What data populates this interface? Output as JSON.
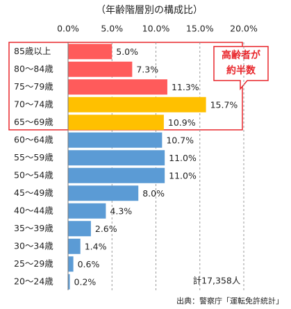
{
  "chart_data": {
    "type": "barh",
    "title": "（年齢階層別の構成比）",
    "categories": [
      "85歳以上",
      "80～84歳",
      "75～79歳",
      "70～74歳",
      "65～69歳",
      "60～64歳",
      "55～59歳",
      "50～54歳",
      "45～49歳",
      "40～44歳",
      "35～39歳",
      "30～34歳",
      "25～29歳",
      "20～24歳"
    ],
    "values": [
      5.0,
      7.3,
      11.3,
      15.7,
      10.9,
      10.7,
      11.0,
      11.0,
      8.0,
      4.3,
      2.6,
      1.4,
      0.6,
      0.2
    ],
    "value_labels": [
      "5.0%",
      "7.3%",
      "11.3%",
      "15.7%",
      "10.9%",
      "10.7%",
      "11.0%",
      "11.0%",
      "8.0%",
      "4.3%",
      "2.6%",
      "1.4%",
      "0.6%",
      "0.2%"
    ],
    "colors": [
      "#ff5b5b",
      "#ff5b5b",
      "#ff5b5b",
      "#ffc000",
      "#ffc000",
      "#5b9bd5",
      "#5b9bd5",
      "#5b9bd5",
      "#5b9bd5",
      "#5b9bd5",
      "#5b9bd5",
      "#5b9bd5",
      "#5b9bd5",
      "#5b9bd5"
    ],
    "xlim": [
      0,
      20
    ],
    "xticks": [
      {
        "value": 0,
        "label": "0.0%"
      },
      {
        "value": 5,
        "label": "5.0%"
      },
      {
        "value": 10,
        "label": "10.0%"
      },
      {
        "value": 15,
        "label": "15.0%"
      },
      {
        "value": 20,
        "label": "20.0%"
      }
    ],
    "grid": true,
    "annotations": [
      "高齢者が",
      "約半数"
    ],
    "total_note": "計17,358人",
    "source": "出典：警察庁「運転免許統計」"
  }
}
